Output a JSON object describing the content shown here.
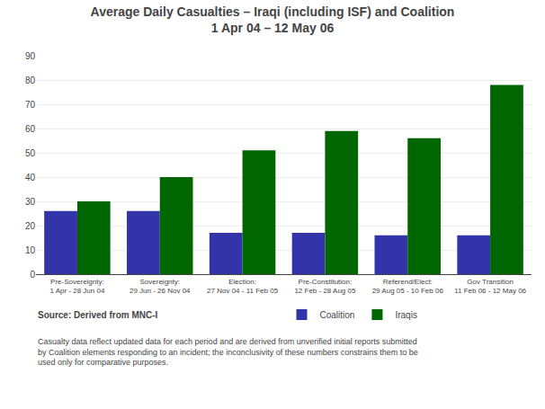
{
  "chart_data": {
    "type": "bar",
    "title": "Average Daily Casualties – Iraqi (including ISF) and Coalition",
    "subtitle": "1 Apr 04 – 12 May 06",
    "categories": [
      "Pre-Sovereignty:\n1 Apr - 28 Jun 04",
      "Sovereignty:\n29 Jun - 26 Nov 04",
      "Election:\n27 Nov 04 - 11 Feb 05",
      "Pre-Constitution:\n12 Feb - 28 Aug 05",
      "Referend/Elect:\n29 Aug 05 - 10 Feb 06",
      "Gov Transition\n11 Feb 06 - 12 May 06"
    ],
    "series": [
      {
        "name": "Coalition",
        "color": "#3333AA",
        "values": [
          26,
          26,
          17,
          17,
          16,
          16
        ]
      },
      {
        "name": "Iraqis",
        "color": "#006600",
        "values": [
          30,
          40,
          51,
          59,
          56,
          78
        ]
      }
    ],
    "ylim": [
      0,
      90
    ],
    "yticks": [
      0,
      10,
      20,
      30,
      40,
      50,
      60,
      70,
      80,
      90
    ],
    "grid": true,
    "legend": "bottom",
    "annotations": [
      "Source: Derived from MNC-I",
      "Casualty data reflect updated data for each period and are derived from unverified initial reports submitted",
      "by Coalition elements responding to an incident; the inconclusivity of these numbers constrains them to be",
      "used only for comparative purposes."
    ]
  }
}
